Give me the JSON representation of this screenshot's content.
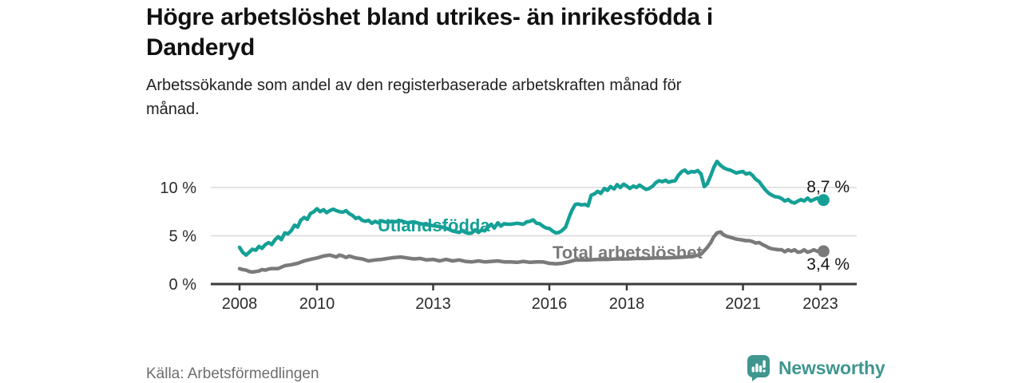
{
  "header": {
    "title_lines": [
      "Högre arbetslöshet bland utrikes- än inrikesfödda i",
      "Danderyd"
    ],
    "subtitle_lines": [
      "Arbetssökande som andel av den registerbaserade arbetskraften månad för",
      "månad."
    ]
  },
  "footer": {
    "source": "Källa: Arbetsförmedlingen",
    "brand": "Newsworthy",
    "brand_icon": "newsworthy-bubble-bar-chart-icon"
  },
  "colors": {
    "foreign_born": "#14a096",
    "total": "#7a7a7a",
    "axis": "#3a3a3a",
    "grid": "#dadada",
    "tick_text": "#2b2b2b",
    "end_label_text": "#161616",
    "brand_teal": "#3f968f"
  },
  "chart_data": {
    "type": "line",
    "title": "Högre arbetslöshet bland utrikes- än inrikesfödda i Danderyd",
    "subtitle": "Arbetssökande som andel av den registerbaserade arbetskraften månad för månad.",
    "unit": "%",
    "x_unit": "year (monthly data)",
    "xlim": [
      2007.3,
      2023.95
    ],
    "ylim": [
      0,
      13.5
    ],
    "grid": "horizontal-only",
    "legend_position": "inline-line-labels",
    "x_ticks": [
      2008,
      2010,
      2013,
      2016,
      2018,
      2021,
      2023
    ],
    "y_ticks": [
      {
        "value": 0,
        "label": "0 %"
      },
      {
        "value": 5,
        "label": "5 %"
      },
      {
        "value": 10,
        "label": "10 %"
      }
    ],
    "series": [
      {
        "name": "Utlandsfödda",
        "color": "#14a096",
        "end_label": "8,7 %",
        "last_value": 8.7,
        "points": [
          [
            2008.0,
            3.8
          ],
          [
            2008.08,
            3.3
          ],
          [
            2008.17,
            3.0
          ],
          [
            2008.25,
            3.3
          ],
          [
            2008.33,
            3.6
          ],
          [
            2008.42,
            3.5
          ],
          [
            2008.5,
            3.9
          ],
          [
            2008.58,
            3.7
          ],
          [
            2008.67,
            4.1
          ],
          [
            2008.75,
            4.3
          ],
          [
            2008.83,
            4.1
          ],
          [
            2008.92,
            4.6
          ],
          [
            2009.0,
            4.9
          ],
          [
            2009.08,
            4.6
          ],
          [
            2009.17,
            5.3
          ],
          [
            2009.25,
            5.2
          ],
          [
            2009.33,
            5.5
          ],
          [
            2009.42,
            6.1
          ],
          [
            2009.5,
            5.9
          ],
          [
            2009.58,
            6.6
          ],
          [
            2009.67,
            6.9
          ],
          [
            2009.75,
            6.7
          ],
          [
            2009.83,
            7.3
          ],
          [
            2009.92,
            7.5
          ],
          [
            2010.0,
            7.8
          ],
          [
            2010.08,
            7.5
          ],
          [
            2010.17,
            7.7
          ],
          [
            2010.25,
            7.4
          ],
          [
            2010.33,
            7.6
          ],
          [
            2010.42,
            7.75
          ],
          [
            2010.5,
            7.6
          ],
          [
            2010.58,
            7.5
          ],
          [
            2010.67,
            7.45
          ],
          [
            2010.75,
            7.6
          ],
          [
            2010.83,
            7.3
          ],
          [
            2010.92,
            7.1
          ],
          [
            2011.0,
            6.8
          ],
          [
            2011.08,
            6.9
          ],
          [
            2011.17,
            6.6
          ],
          [
            2011.25,
            6.5
          ],
          [
            2011.33,
            6.6
          ],
          [
            2011.42,
            6.3
          ],
          [
            2011.5,
            6.5
          ],
          [
            2011.58,
            6.35
          ],
          [
            2011.67,
            6.55
          ],
          [
            2011.75,
            6.45
          ],
          [
            2011.83,
            6.4
          ],
          [
            2011.92,
            6.5
          ],
          [
            2012.0,
            6.45
          ],
          [
            2012.17,
            6.55
          ],
          [
            2012.33,
            6.35
          ],
          [
            2012.5,
            6.45
          ],
          [
            2012.67,
            6.25
          ],
          [
            2012.83,
            6.15
          ],
          [
            2013.0,
            6.05
          ],
          [
            2013.17,
            5.95
          ],
          [
            2013.33,
            5.8
          ],
          [
            2013.5,
            5.5
          ],
          [
            2013.67,
            5.35
          ],
          [
            2013.75,
            5.55
          ],
          [
            2013.83,
            5.35
          ],
          [
            2013.92,
            5.25
          ],
          [
            2014.0,
            5.3
          ],
          [
            2014.08,
            5.6
          ],
          [
            2014.17,
            5.35
          ],
          [
            2014.25,
            5.6
          ],
          [
            2014.33,
            5.5
          ],
          [
            2014.42,
            5.9
          ],
          [
            2014.5,
            6.2
          ],
          [
            2014.58,
            5.8
          ],
          [
            2014.67,
            6.35
          ],
          [
            2014.75,
            6.0
          ],
          [
            2014.83,
            6.25
          ],
          [
            2014.92,
            6.2
          ],
          [
            2015.0,
            6.2
          ],
          [
            2015.17,
            6.3
          ],
          [
            2015.33,
            6.2
          ],
          [
            2015.42,
            6.45
          ],
          [
            2015.5,
            6.5
          ],
          [
            2015.58,
            6.65
          ],
          [
            2015.67,
            6.3
          ],
          [
            2015.75,
            6.25
          ],
          [
            2015.83,
            6.0
          ],
          [
            2015.92,
            5.8
          ],
          [
            2016.0,
            5.75
          ],
          [
            2016.08,
            5.5
          ],
          [
            2016.17,
            5.3
          ],
          [
            2016.25,
            5.35
          ],
          [
            2016.33,
            5.55
          ],
          [
            2016.42,
            5.9
          ],
          [
            2016.5,
            6.8
          ],
          [
            2016.58,
            7.6
          ],
          [
            2016.67,
            8.25
          ],
          [
            2016.75,
            8.3
          ],
          [
            2016.83,
            8.2
          ],
          [
            2016.92,
            8.25
          ],
          [
            2017.0,
            8.1
          ],
          [
            2017.08,
            9.2
          ],
          [
            2017.17,
            9.35
          ],
          [
            2017.25,
            9.6
          ],
          [
            2017.33,
            9.4
          ],
          [
            2017.42,
            9.9
          ],
          [
            2017.5,
            9.7
          ],
          [
            2017.58,
            10.1
          ],
          [
            2017.67,
            9.85
          ],
          [
            2017.75,
            10.3
          ],
          [
            2017.83,
            10.0
          ],
          [
            2017.92,
            10.35
          ],
          [
            2018.0,
            10.15
          ],
          [
            2018.08,
            9.9
          ],
          [
            2018.17,
            10.15
          ],
          [
            2018.25,
            10.0
          ],
          [
            2018.33,
            10.25
          ],
          [
            2018.42,
            10.0
          ],
          [
            2018.5,
            9.8
          ],
          [
            2018.58,
            9.9
          ],
          [
            2018.67,
            10.15
          ],
          [
            2018.75,
            10.5
          ],
          [
            2018.83,
            10.7
          ],
          [
            2018.92,
            10.6
          ],
          [
            2019.0,
            10.75
          ],
          [
            2019.08,
            10.55
          ],
          [
            2019.17,
            10.65
          ],
          [
            2019.25,
            10.7
          ],
          [
            2019.33,
            11.25
          ],
          [
            2019.42,
            11.65
          ],
          [
            2019.5,
            11.8
          ],
          [
            2019.58,
            11.5
          ],
          [
            2019.67,
            11.65
          ],
          [
            2019.75,
            11.6
          ],
          [
            2019.83,
            11.75
          ],
          [
            2019.92,
            11.4
          ],
          [
            2020.0,
            10.1
          ],
          [
            2020.08,
            10.4
          ],
          [
            2020.17,
            11.25
          ],
          [
            2020.25,
            12.1
          ],
          [
            2020.33,
            12.7
          ],
          [
            2020.42,
            12.3
          ],
          [
            2020.5,
            12.05
          ],
          [
            2020.58,
            11.9
          ],
          [
            2020.67,
            11.8
          ],
          [
            2020.75,
            11.65
          ],
          [
            2020.83,
            11.5
          ],
          [
            2020.92,
            11.6
          ],
          [
            2021.0,
            11.65
          ],
          [
            2021.08,
            11.4
          ],
          [
            2021.17,
            11.5
          ],
          [
            2021.25,
            11.25
          ],
          [
            2021.33,
            10.85
          ],
          [
            2021.42,
            10.6
          ],
          [
            2021.5,
            10.15
          ],
          [
            2021.58,
            9.75
          ],
          [
            2021.67,
            9.4
          ],
          [
            2021.75,
            9.2
          ],
          [
            2021.83,
            9.05
          ],
          [
            2021.92,
            9.0
          ],
          [
            2022.0,
            8.85
          ],
          [
            2022.08,
            8.6
          ],
          [
            2022.17,
            8.75
          ],
          [
            2022.25,
            8.5
          ],
          [
            2022.33,
            8.4
          ],
          [
            2022.42,
            8.6
          ],
          [
            2022.5,
            8.75
          ],
          [
            2022.58,
            8.6
          ],
          [
            2022.67,
            8.9
          ],
          [
            2022.75,
            8.6
          ],
          [
            2022.83,
            8.75
          ],
          [
            2022.92,
            8.9
          ],
          [
            2023.0,
            8.6
          ],
          [
            2023.08,
            8.7
          ]
        ]
      },
      {
        "name": "Total arbetslöshet",
        "color": "#7a7a7a",
        "end_label": "3,4 %",
        "last_value": 3.4,
        "points": [
          [
            2008.0,
            1.6
          ],
          [
            2008.08,
            1.5
          ],
          [
            2008.17,
            1.45
          ],
          [
            2008.25,
            1.3
          ],
          [
            2008.33,
            1.25
          ],
          [
            2008.42,
            1.3
          ],
          [
            2008.5,
            1.35
          ],
          [
            2008.58,
            1.5
          ],
          [
            2008.67,
            1.45
          ],
          [
            2008.75,
            1.55
          ],
          [
            2008.83,
            1.6
          ],
          [
            2008.92,
            1.6
          ],
          [
            2009.0,
            1.6
          ],
          [
            2009.17,
            1.9
          ],
          [
            2009.33,
            2.0
          ],
          [
            2009.5,
            2.15
          ],
          [
            2009.67,
            2.4
          ],
          [
            2009.83,
            2.55
          ],
          [
            2010.0,
            2.7
          ],
          [
            2010.17,
            2.9
          ],
          [
            2010.33,
            3.0
          ],
          [
            2010.42,
            2.9
          ],
          [
            2010.5,
            2.8
          ],
          [
            2010.58,
            3.0
          ],
          [
            2010.67,
            2.9
          ],
          [
            2010.75,
            2.75
          ],
          [
            2010.83,
            2.9
          ],
          [
            2010.92,
            2.8
          ],
          [
            2011.0,
            2.7
          ],
          [
            2011.17,
            2.6
          ],
          [
            2011.33,
            2.4
          ],
          [
            2011.5,
            2.5
          ],
          [
            2011.67,
            2.55
          ],
          [
            2011.83,
            2.65
          ],
          [
            2012.0,
            2.75
          ],
          [
            2012.17,
            2.8
          ],
          [
            2012.33,
            2.7
          ],
          [
            2012.5,
            2.6
          ],
          [
            2012.67,
            2.65
          ],
          [
            2012.83,
            2.5
          ],
          [
            2013.0,
            2.55
          ],
          [
            2013.17,
            2.4
          ],
          [
            2013.33,
            2.55
          ],
          [
            2013.5,
            2.4
          ],
          [
            2013.67,
            2.5
          ],
          [
            2013.83,
            2.35
          ],
          [
            2014.0,
            2.3
          ],
          [
            2014.17,
            2.4
          ],
          [
            2014.33,
            2.3
          ],
          [
            2014.5,
            2.35
          ],
          [
            2014.67,
            2.4
          ],
          [
            2014.83,
            2.3
          ],
          [
            2015.0,
            2.3
          ],
          [
            2015.17,
            2.25
          ],
          [
            2015.33,
            2.35
          ],
          [
            2015.5,
            2.25
          ],
          [
            2015.67,
            2.3
          ],
          [
            2015.83,
            2.3
          ],
          [
            2016.0,
            2.15
          ],
          [
            2016.17,
            2.1
          ],
          [
            2016.33,
            2.15
          ],
          [
            2016.5,
            2.3
          ],
          [
            2016.67,
            2.5
          ],
          [
            2016.83,
            2.5
          ],
          [
            2017.0,
            2.5
          ],
          [
            2017.25,
            2.55
          ],
          [
            2017.5,
            2.55
          ],
          [
            2017.75,
            2.6
          ],
          [
            2018.0,
            2.6
          ],
          [
            2018.25,
            2.65
          ],
          [
            2018.5,
            2.65
          ],
          [
            2018.75,
            2.7
          ],
          [
            2019.0,
            2.7
          ],
          [
            2019.25,
            2.75
          ],
          [
            2019.5,
            2.8
          ],
          [
            2019.75,
            2.9
          ],
          [
            2019.92,
            3.1
          ],
          [
            2020.08,
            3.8
          ],
          [
            2020.17,
            4.3
          ],
          [
            2020.25,
            4.9
          ],
          [
            2020.33,
            5.3
          ],
          [
            2020.42,
            5.4
          ],
          [
            2020.5,
            5.1
          ],
          [
            2020.58,
            4.95
          ],
          [
            2020.67,
            4.85
          ],
          [
            2020.75,
            4.75
          ],
          [
            2020.83,
            4.65
          ],
          [
            2020.92,
            4.6
          ],
          [
            2021.0,
            4.55
          ],
          [
            2021.08,
            4.5
          ],
          [
            2021.17,
            4.5
          ],
          [
            2021.25,
            4.4
          ],
          [
            2021.33,
            4.25
          ],
          [
            2021.42,
            4.3
          ],
          [
            2021.5,
            4.1
          ],
          [
            2021.58,
            3.95
          ],
          [
            2021.67,
            3.75
          ],
          [
            2021.75,
            3.65
          ],
          [
            2021.83,
            3.6
          ],
          [
            2021.92,
            3.55
          ],
          [
            2022.0,
            3.55
          ],
          [
            2022.08,
            3.35
          ],
          [
            2022.17,
            3.55
          ],
          [
            2022.25,
            3.4
          ],
          [
            2022.33,
            3.55
          ],
          [
            2022.42,
            3.3
          ],
          [
            2022.5,
            3.35
          ],
          [
            2022.58,
            3.55
          ],
          [
            2022.67,
            3.3
          ],
          [
            2022.75,
            3.4
          ],
          [
            2022.83,
            3.55
          ],
          [
            2022.92,
            3.4
          ],
          [
            2023.0,
            3.45
          ],
          [
            2023.08,
            3.4
          ]
        ]
      }
    ]
  }
}
